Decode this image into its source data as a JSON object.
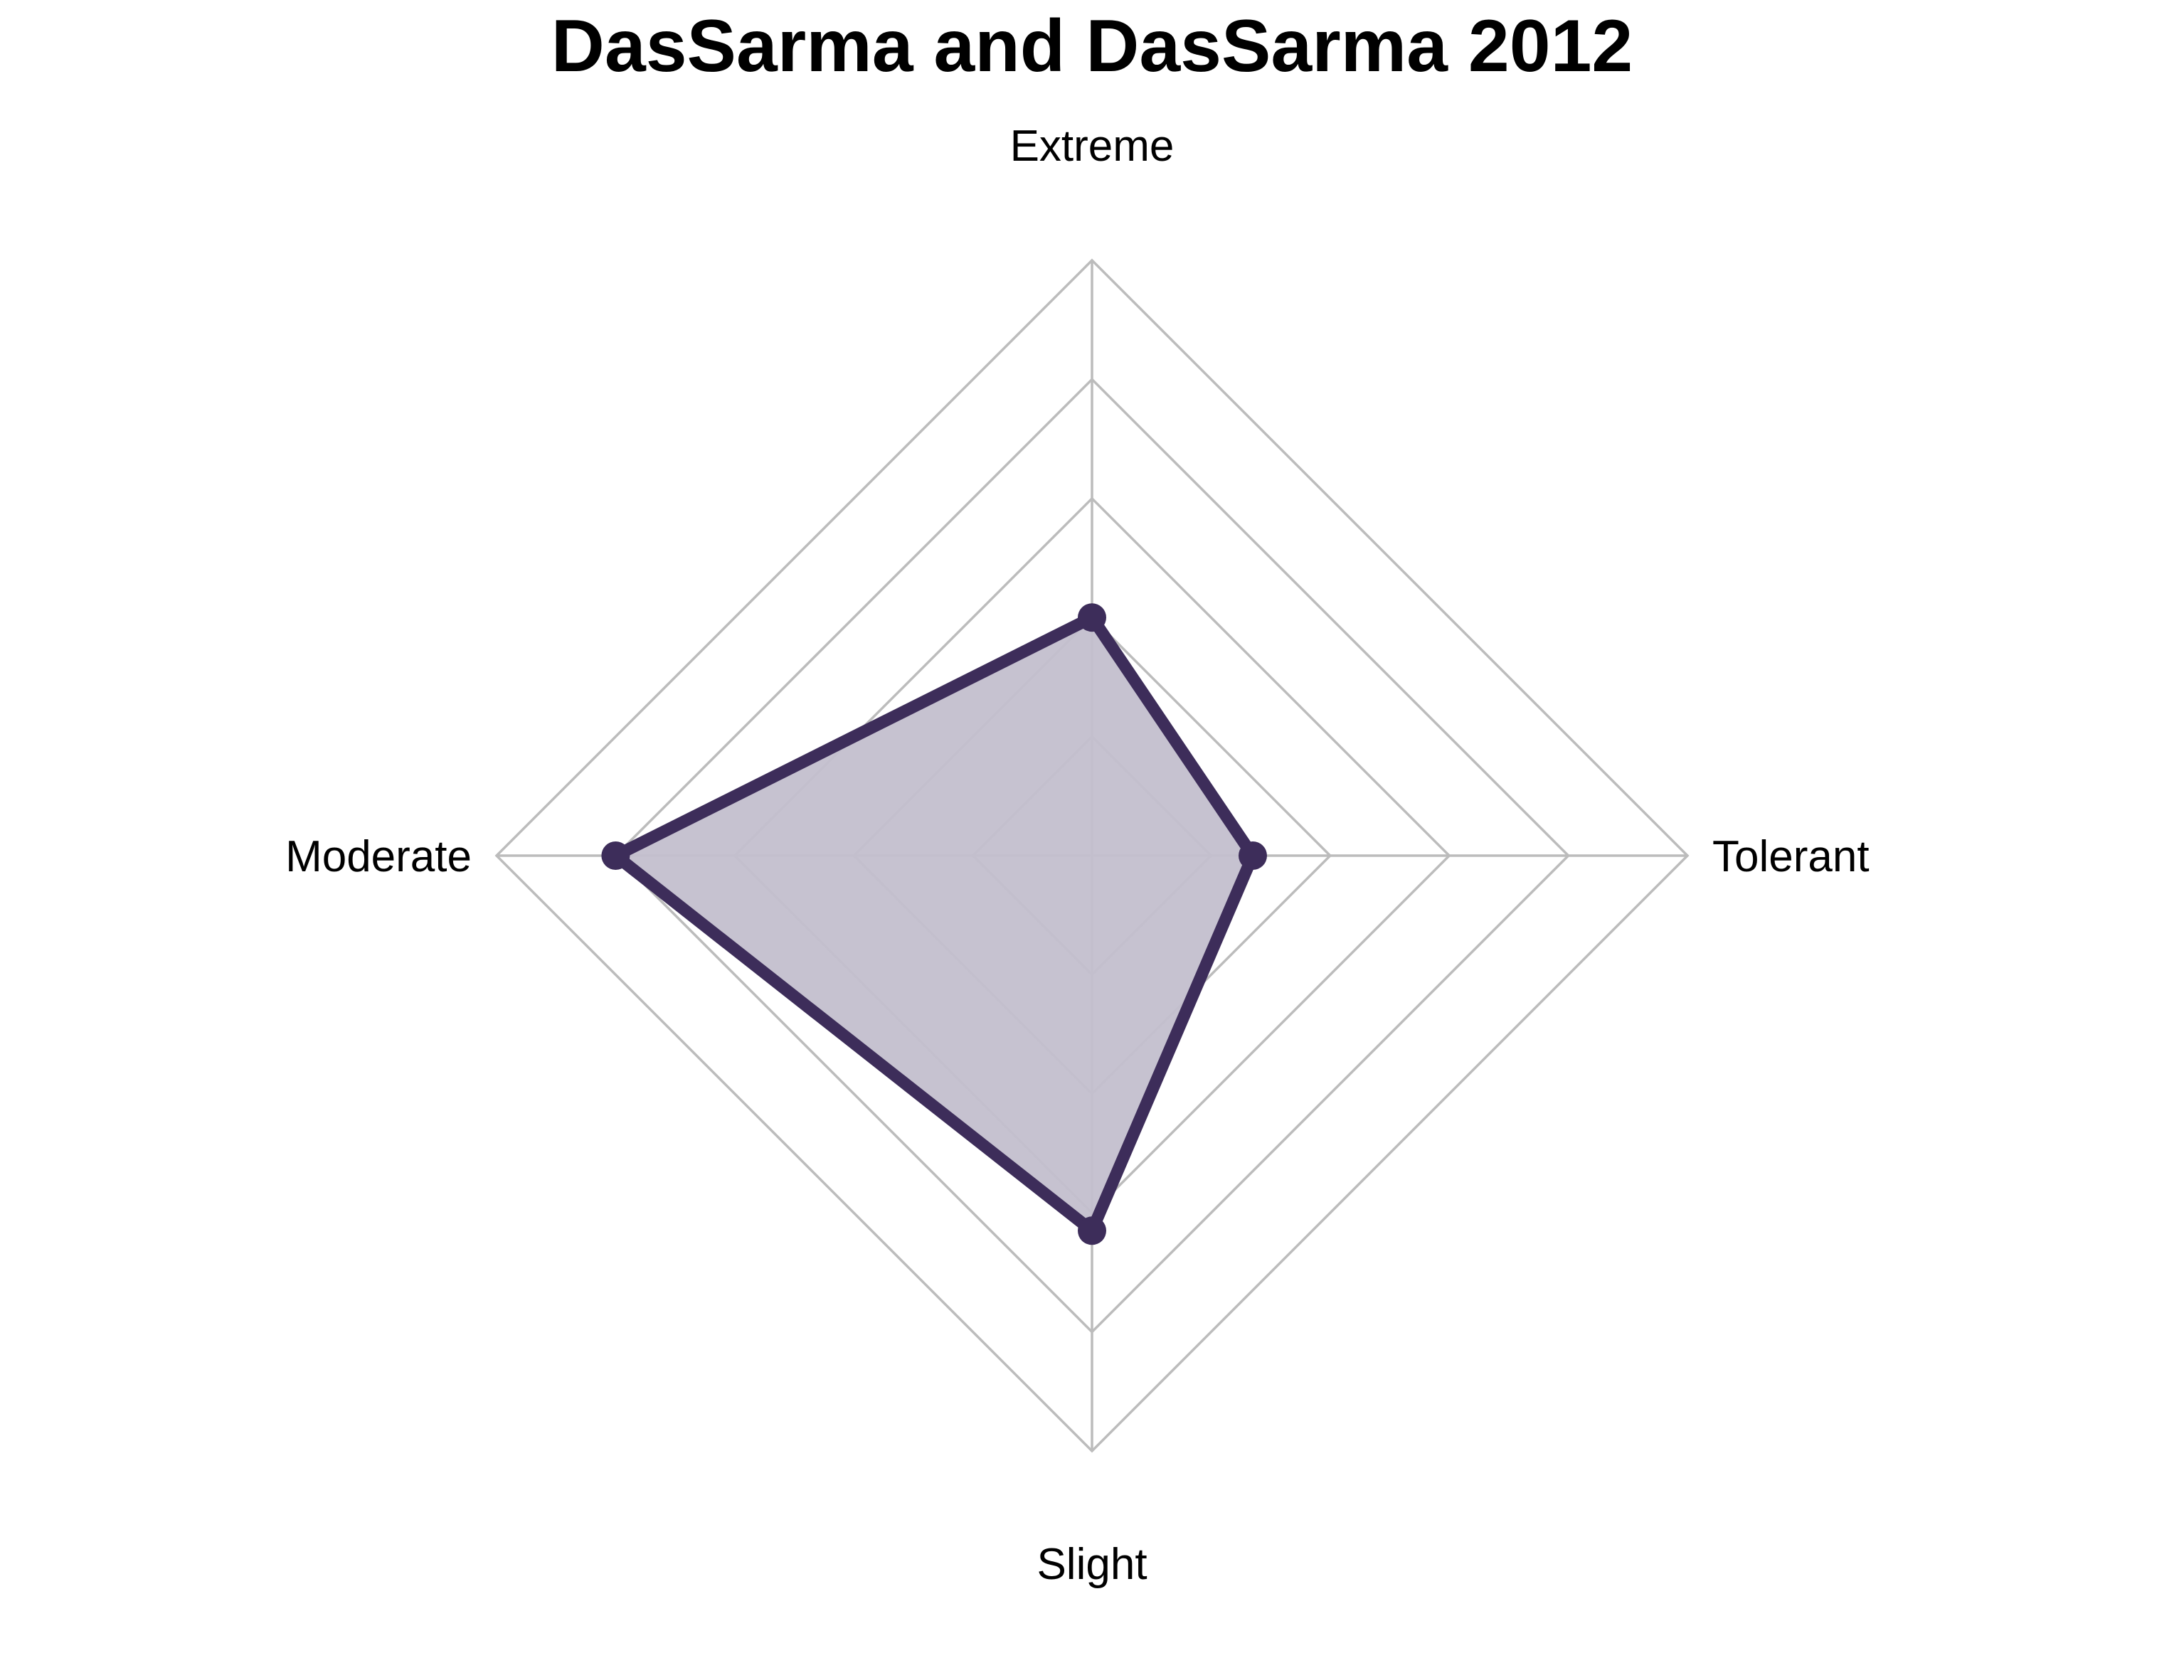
{
  "chart_data": {
    "type": "radar",
    "title": "DasSarma and DasSarma 2012",
    "axes": [
      "Extreme",
      "Tolerant",
      "Slight",
      "Moderate"
    ],
    "series": [
      {
        "values": [
          0.4,
          0.27,
          0.63,
          0.8
        ]
      }
    ],
    "range": [
      0,
      1
    ],
    "grid_levels": 5,
    "colors": {
      "series_line": "#3d2d5a",
      "series_fill": "#c3bfcd",
      "grid": "#bcbcbc"
    }
  }
}
